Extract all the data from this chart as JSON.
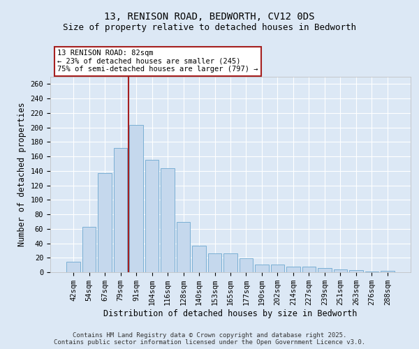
{
  "title1": "13, RENISON ROAD, BEDWORTH, CV12 0DS",
  "title2": "Size of property relative to detached houses in Bedworth",
  "xlabel": "Distribution of detached houses by size in Bedworth",
  "ylabel": "Number of detached properties",
  "categories": [
    "42sqm",
    "54sqm",
    "67sqm",
    "79sqm",
    "91sqm",
    "104sqm",
    "116sqm",
    "128sqm",
    "140sqm",
    "153sqm",
    "165sqm",
    "177sqm",
    "190sqm",
    "202sqm",
    "214sqm",
    "227sqm",
    "239sqm",
    "251sqm",
    "263sqm",
    "276sqm",
    "288sqm"
  ],
  "values": [
    14,
    63,
    137,
    172,
    203,
    155,
    144,
    69,
    37,
    26,
    26,
    19,
    11,
    11,
    8,
    8,
    6,
    4,
    3,
    1,
    2
  ],
  "bar_color": "#c5d8ed",
  "bar_edge_color": "#7aafd4",
  "vline_x_index": 3.5,
  "vline_color": "#a52020",
  "annotation_text": "13 RENISON ROAD: 82sqm\n← 23% of detached houses are smaller (245)\n75% of semi-detached houses are larger (797) →",
  "annotation_box_color": "#a52020",
  "ylim": [
    0,
    270
  ],
  "yticks": [
    0,
    20,
    40,
    60,
    80,
    100,
    120,
    140,
    160,
    180,
    200,
    220,
    240,
    260
  ],
  "bg_color": "#dce8f5",
  "plot_bg_color": "#dce8f5",
  "footer1": "Contains HM Land Registry data © Crown copyright and database right 2025.",
  "footer2": "Contains public sector information licensed under the Open Government Licence v3.0.",
  "title1_fontsize": 10,
  "title2_fontsize": 9,
  "axis_label_fontsize": 8.5,
  "tick_fontsize": 7.5,
  "annotation_fontsize": 7.5,
  "footer_fontsize": 6.5
}
